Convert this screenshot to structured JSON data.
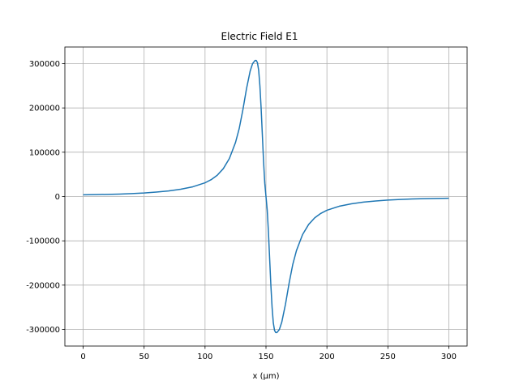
{
  "chart_data": {
    "type": "line",
    "title": "Electric Field E1",
    "xlabel": "x (µm)",
    "ylabel": "",
    "xlim": [
      -15,
      315
    ],
    "ylim": [
      -337500,
      337500
    ],
    "xticks": [
      0,
      50,
      100,
      150,
      200,
      250,
      300
    ],
    "yticks": [
      -300000,
      -200000,
      -100000,
      0,
      100000,
      200000,
      300000
    ],
    "grid": true,
    "legend": "none",
    "colors": {
      "series": "#1f77b4",
      "grid": "#b0b0b0"
    },
    "series": [
      {
        "x": [
          0,
          10,
          20,
          30,
          40,
          50,
          60,
          70,
          80,
          90,
          100,
          105,
          110,
          115,
          120,
          125,
          128,
          131,
          134,
          137,
          139,
          141,
          142,
          143,
          144,
          145,
          146,
          147,
          148,
          149,
          150,
          151,
          152,
          153,
          154,
          155,
          156,
          157,
          158,
          159,
          161,
          163,
          166,
          169,
          172,
          175,
          180,
          185,
          190,
          195,
          200,
          210,
          220,
          230,
          240,
          250,
          260,
          270,
          280,
          290,
          300
        ],
        "y": [
          3800,
          4300,
          4900,
          5600,
          6700,
          8000,
          10000,
          12500,
          16500,
          22000,
          31000,
          38000,
          48000,
          63000,
          86000,
          122000,
          153000,
          195000,
          243000,
          283000,
          300000,
          307000,
          307000,
          302000,
          285000,
          250000,
          200000,
          140000,
          80000,
          30000,
          0,
          -30000,
          -80000,
          -140000,
          -200000,
          -250000,
          -285000,
          -302000,
          -307000,
          -307000,
          -300000,
          -283000,
          -243000,
          -195000,
          -153000,
          -122000,
          -86000,
          -63000,
          -48000,
          -38000,
          -31000,
          -22000,
          -16500,
          -12500,
          -10000,
          -8000,
          -6700,
          -5600,
          -4900,
          -4300,
          -3800
        ]
      }
    ]
  }
}
